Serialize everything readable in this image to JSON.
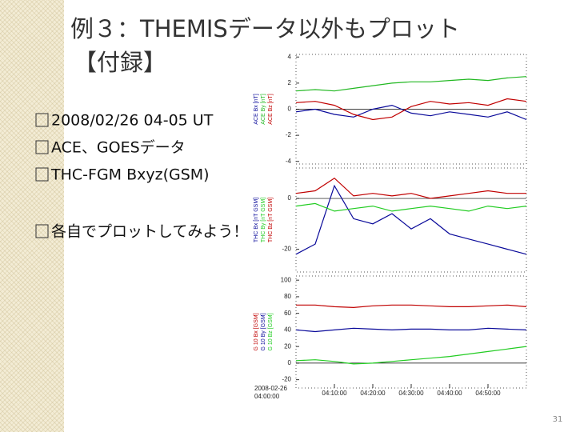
{
  "header": {
    "title_line1": "例３：THEMISデータ以外もプロット",
    "title_line2": "【付録】"
  },
  "bullets": [
    "2008/02/26 04-05 UT",
    "ACE、GOESデータ",
    "THC-FGM Bxyz(GSM)",
    "各自でプロットしてみよう！"
  ],
  "page_number": "31",
  "figure": {
    "date_label": [
      "2008-02-26",
      "04:00:00"
    ],
    "xticks": [
      "04:10:00",
      "04:20:00",
      "04:30:00",
      "04:40:00",
      "04:50:00"
    ],
    "panels": [
      {
        "ylim": [
          -4.2,
          4.2
        ],
        "yticks": [
          4,
          2,
          0,
          -2,
          -4
        ],
        "series": [
          {
            "name": "ACE Bx [nT]",
            "color": "#0a0a9a",
            "values": [
              -0.2,
              0,
              -0.4,
              -0.6,
              0,
              0.3,
              -0.3,
              -0.5,
              -0.2,
              -0.4,
              -0.6,
              -0.2,
              -0.8
            ]
          },
          {
            "name": "ACE By [nT]",
            "color": "#22b822",
            "values": [
              1.4,
              1.5,
              1.4,
              1.6,
              1.8,
              2.0,
              2.1,
              2.1,
              2.2,
              2.3,
              2.2,
              2.4,
              2.5
            ]
          },
          {
            "name": "ACE Bz [nT]",
            "color": "#c00000",
            "values": [
              0.5,
              0.6,
              0.3,
              -0.4,
              -0.8,
              -0.6,
              0.2,
              0.6,
              0.4,
              0.5,
              0.3,
              0.8,
              0.6
            ]
          }
        ]
      },
      {
        "ylim": [
          -29,
          12
        ],
        "yticks": [
          0,
          -20
        ],
        "series": [
          {
            "name": "THC Bx [nT GSM]",
            "color": "#0a0a9a",
            "values": [
              -22,
              -18,
              5,
              -8,
              -10,
              -6,
              -12,
              -8,
              -14,
              -16,
              -18,
              -20,
              -22
            ]
          },
          {
            "name": "THC By [nT GSM]",
            "color": "#22cc22",
            "values": [
              -3,
              -2,
              -5,
              -4,
              -3,
              -5,
              -4,
              -3,
              -4,
              -5,
              -3,
              -4,
              -3
            ]
          },
          {
            "name": "THC Bz [nT GSM]",
            "color": "#c00000",
            "values": [
              2,
              3,
              8,
              1,
              2,
              1,
              2,
              0,
              1,
              2,
              3,
              2,
              2
            ]
          }
        ]
      },
      {
        "ylim": [
          -30,
          105
        ],
        "yticks": [
          100,
          80,
          60,
          40,
          20,
          0,
          -20
        ],
        "series": [
          {
            "name": "G 10 Bx [GSM]",
            "color": "#c00000",
            "values": [
              70,
              70,
              68,
              67,
              69,
              70,
              70,
              69,
              68,
              68,
              69,
              70,
              68
            ]
          },
          {
            "name": "G 10 By [GSM]",
            "color": "#0a0a9a",
            "values": [
              40,
              38,
              40,
              42,
              41,
              40,
              41,
              41,
              40,
              40,
              42,
              41,
              40
            ]
          },
          {
            "name": "G 10 Bz [GSM]",
            "color": "#22cc22",
            "values": [
              3,
              4,
              2,
              -1,
              0,
              2,
              4,
              6,
              8,
              11,
              14,
              17,
              20
            ]
          }
        ]
      }
    ]
  }
}
